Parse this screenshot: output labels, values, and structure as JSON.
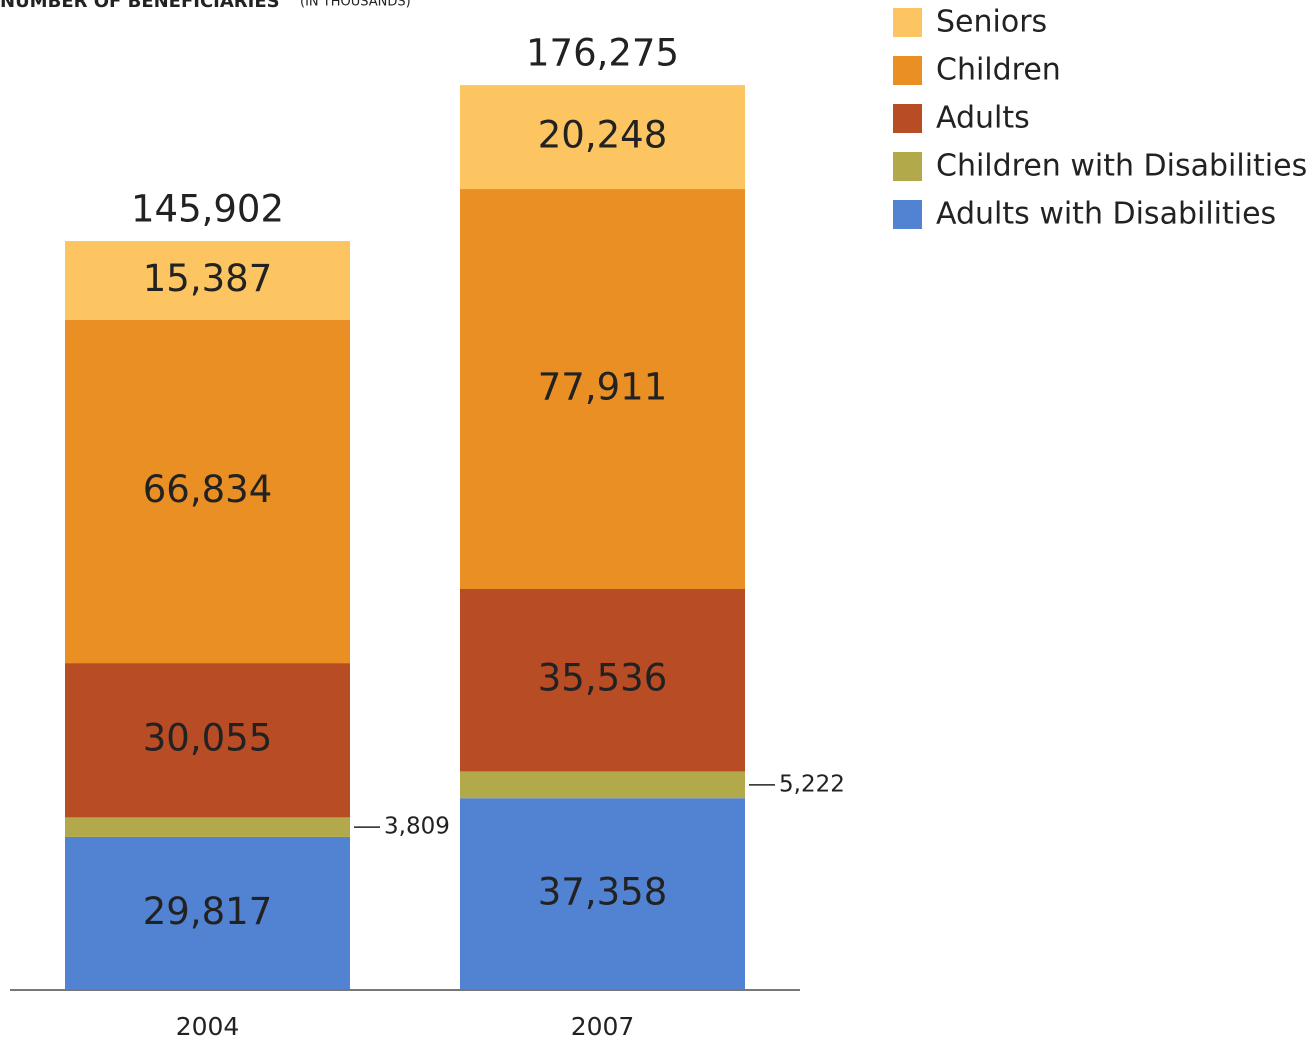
{
  "chart_data": {
    "type": "stacked_bar",
    "title": "NUMBER OF BENEFICIARIES",
    "subtitle": "(IN THOUSANDS)",
    "categories": [
      "2004",
      "2007"
    ],
    "series": [
      {
        "name": "Adults with Disabilities",
        "color": "#5283d2",
        "label_color": "#ffffff",
        "values": [
          29817,
          37358
        ],
        "value_labels": [
          "29,817",
          "37,358"
        ]
      },
      {
        "name": "Children with Disabilities",
        "color": "#b1a94a",
        "label_color": "#ffffff",
        "values": [
          3809,
          5222
        ],
        "value_labels": [
          "3,809",
          "5,222"
        ]
      },
      {
        "name": "Adults",
        "color": "#b84c24",
        "label_color": "#ffffff",
        "values": [
          30055,
          35536
        ],
        "value_labels": [
          "30,055",
          "35,536"
        ]
      },
      {
        "name": "Children",
        "color": "#e98f24",
        "label_color": "#ffffff",
        "values": [
          66834,
          77911
        ],
        "value_labels": [
          "66,834",
          "77,911"
        ]
      },
      {
        "name": "Seniors",
        "color": "#fdc462",
        "label_color": "#222222",
        "values": [
          15387,
          20248
        ],
        "value_labels": [
          "15,387",
          "20,248"
        ]
      }
    ],
    "totals": [
      145902,
      176275
    ],
    "total_labels": [
      "145,902",
      "176,275"
    ],
    "ylim": [
      0,
      180000
    ],
    "legend": "top-right"
  }
}
